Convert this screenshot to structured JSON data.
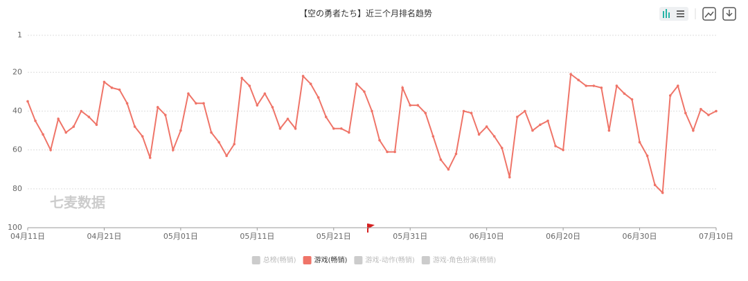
{
  "chart_data": {
    "type": "line",
    "title": "【空の勇者たち】近三个月排名趋势",
    "watermark": "七麦数据",
    "categories": [
      "04月11日",
      null,
      null,
      null,
      null,
      null,
      null,
      null,
      null,
      null,
      "04月21日",
      null,
      null,
      null,
      null,
      null,
      null,
      null,
      null,
      null,
      "05月01日",
      null,
      null,
      null,
      null,
      null,
      null,
      null,
      null,
      null,
      "05月11日",
      null,
      null,
      null,
      null,
      null,
      null,
      null,
      null,
      null,
      "05月21日",
      null,
      null,
      null,
      null,
      null,
      null,
      null,
      null,
      null,
      "05月31日",
      null,
      null,
      null,
      null,
      null,
      null,
      null,
      null,
      null,
      "06月10日",
      null,
      null,
      null,
      null,
      null,
      null,
      null,
      null,
      null,
      "06月20日",
      null,
      null,
      null,
      null,
      null,
      null,
      null,
      null,
      null,
      "06月30日",
      null,
      null,
      null,
      null,
      null,
      null,
      null,
      null,
      null,
      "07月10日"
    ],
    "series": [
      {
        "name": "游戏(畅销)",
        "color": "#ef7468",
        "values": [
          35,
          45,
          52,
          60,
          44,
          51,
          48,
          40,
          43,
          47,
          25,
          28,
          29,
          36,
          48,
          53,
          64,
          38,
          42,
          60,
          50,
          31,
          36,
          36,
          51,
          56,
          63,
          57,
          23,
          27,
          37,
          31,
          38,
          49,
          44,
          49,
          22,
          26,
          33,
          43,
          49,
          49,
          51,
          26,
          30,
          40,
          55,
          61,
          61,
          28,
          37,
          37,
          41,
          53,
          65,
          70,
          62,
          40,
          41,
          52,
          48,
          53,
          59,
          74,
          43,
          40,
          50,
          47,
          45,
          58,
          60,
          21,
          24,
          27,
          27,
          28,
          50,
          27,
          31,
          34,
          56,
          63,
          78,
          82,
          32,
          27,
          41,
          50,
          39,
          42,
          40
        ]
      }
    ],
    "inactive_series": [
      {
        "name": "总榜(畅销)",
        "color": "#cccccc"
      },
      {
        "name": "游戏-动作(畅销)",
        "color": "#cccccc"
      },
      {
        "name": "游戏-角色扮演(畅销)",
        "color": "#cccccc"
      }
    ],
    "ylim": [
      1,
      100
    ],
    "inverted": true,
    "yticks": [
      1,
      20,
      40,
      60,
      80,
      100
    ],
    "grid": true
  }
}
